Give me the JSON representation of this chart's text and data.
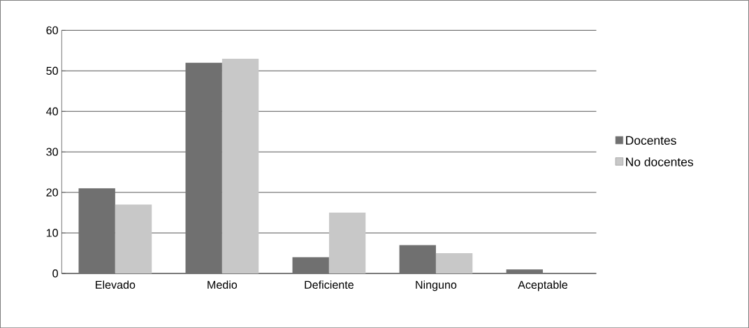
{
  "chart_data": {
    "type": "bar",
    "categories": [
      "Elevado",
      "Medio",
      "Deficiente",
      "Ninguno",
      "Aceptable"
    ],
    "series": [
      {
        "name": "Docentes",
        "color": "#707070",
        "values": [
          21,
          52,
          4,
          7,
          1
        ]
      },
      {
        "name": "No docentes",
        "color": "#c8c8c8",
        "values": [
          17,
          53,
          15,
          5,
          0
        ]
      }
    ],
    "ylim": [
      0,
      60
    ],
    "yticks": [
      0,
      10,
      20,
      30,
      40,
      50,
      60
    ],
    "grid": "y",
    "legend": "right"
  }
}
